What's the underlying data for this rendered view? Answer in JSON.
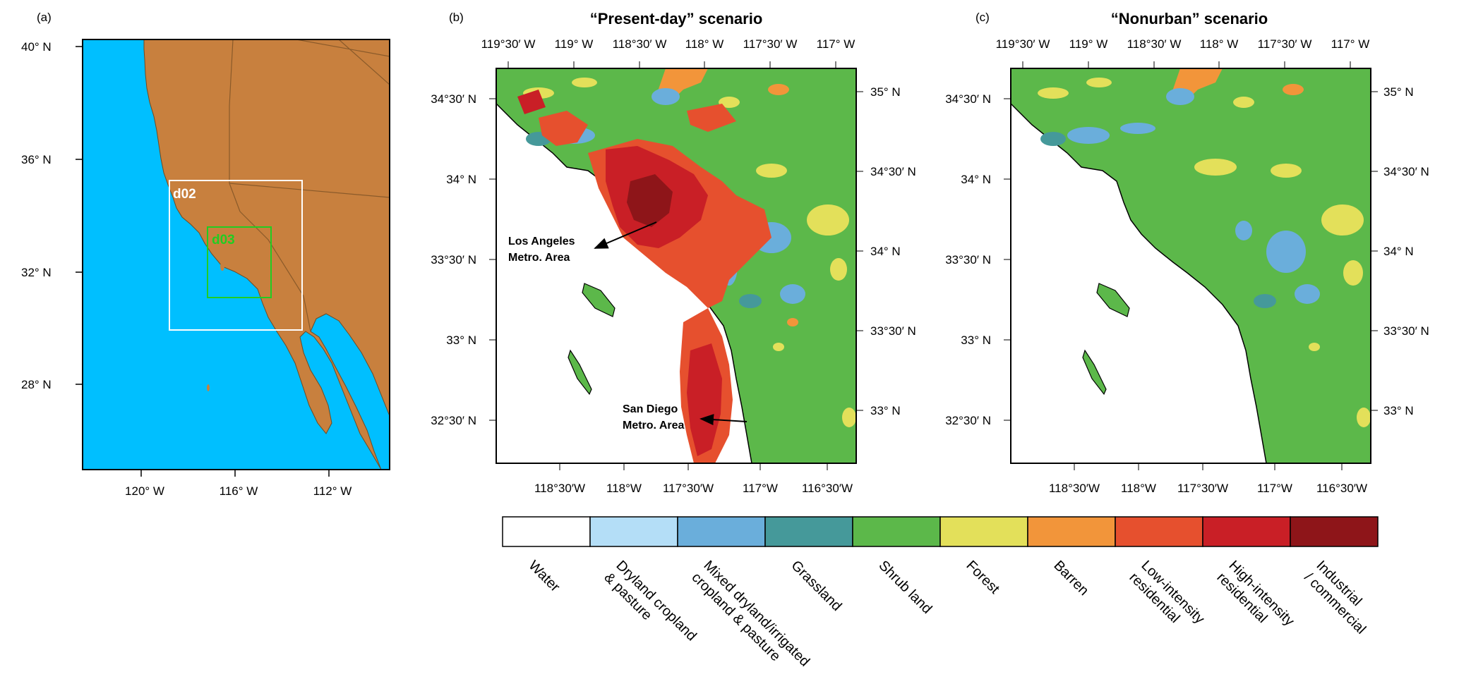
{
  "panels": {
    "a": {
      "label": "(a)",
      "lat_ticks": [
        "40° N",
        "36° N",
        "32° N",
        "28° N"
      ],
      "lon_ticks": [
        "120° W",
        "116° W",
        "112° W"
      ],
      "domains": [
        {
          "name": "d02",
          "color": "#ffffff"
        },
        {
          "name": "d03",
          "color": "#22cc22"
        }
      ],
      "colors": {
        "ocean": "#00bfff",
        "land": "#c8803e",
        "border": "#8a5a2a"
      }
    },
    "b": {
      "label": "(b)",
      "title": "“Present-day” scenario",
      "top_ticks": [
        "119°30′ W",
        "119° W",
        "118°30′ W",
        "118° W",
        "117°30′ W",
        "117° W"
      ],
      "bottom_ticks": [
        "118°30′W",
        "118°W",
        "117°30′W",
        "117°W",
        "116°30′W"
      ],
      "left_ticks": [
        "34°30′ N",
        "34° N",
        "33°30′ N",
        "33° N",
        "32°30′ N"
      ],
      "right_ticks": [
        "35° N",
        "34°30′ N",
        "34° N",
        "33°30′ N",
        "33° N"
      ],
      "annotations": [
        {
          "line1": "Los Angeles",
          "line2": "Metro. Area"
        },
        {
          "line1": "San Diego",
          "line2": "Metro. Area"
        }
      ]
    },
    "c": {
      "label": "(c)",
      "title": "“Nonurban” scenario",
      "top_ticks": [
        "119°30′ W",
        "119° W",
        "118°30′ W",
        "118° W",
        "117°30′ W",
        "117° W"
      ],
      "bottom_ticks": [
        "118°30′W",
        "118°W",
        "117°30′W",
        "117°W",
        "116°30′W"
      ],
      "left_ticks": [
        "34°30′ N",
        "34° N",
        "33°30′ N",
        "33° N",
        "32°30′ N"
      ],
      "right_ticks": [
        "35° N",
        "34°30′ N",
        "34° N",
        "33°30′ N",
        "33° N"
      ]
    }
  },
  "legend": [
    {
      "label": "Water",
      "color": "#ffffff"
    },
    {
      "label": "Dryland cropland\n& pasture",
      "color": "#b4def7"
    },
    {
      "label": "Mixed dryland/irrigated\ncropland & pasture",
      "color": "#6aaedb"
    },
    {
      "label": "Grassland",
      "color": "#45999a"
    },
    {
      "label": "Shrub land",
      "color": "#5cb84a"
    },
    {
      "label": "Forest",
      "color": "#e3e05a"
    },
    {
      "label": "Barren",
      "color": "#f2953a"
    },
    {
      "label": "Low-intensity\nresidential",
      "color": "#e6502e"
    },
    {
      "label": "High-intensity\nresidential",
      "color": "#c91f26"
    },
    {
      "label": "Industrial\n/ commercial",
      "color": "#8e1519"
    }
  ]
}
